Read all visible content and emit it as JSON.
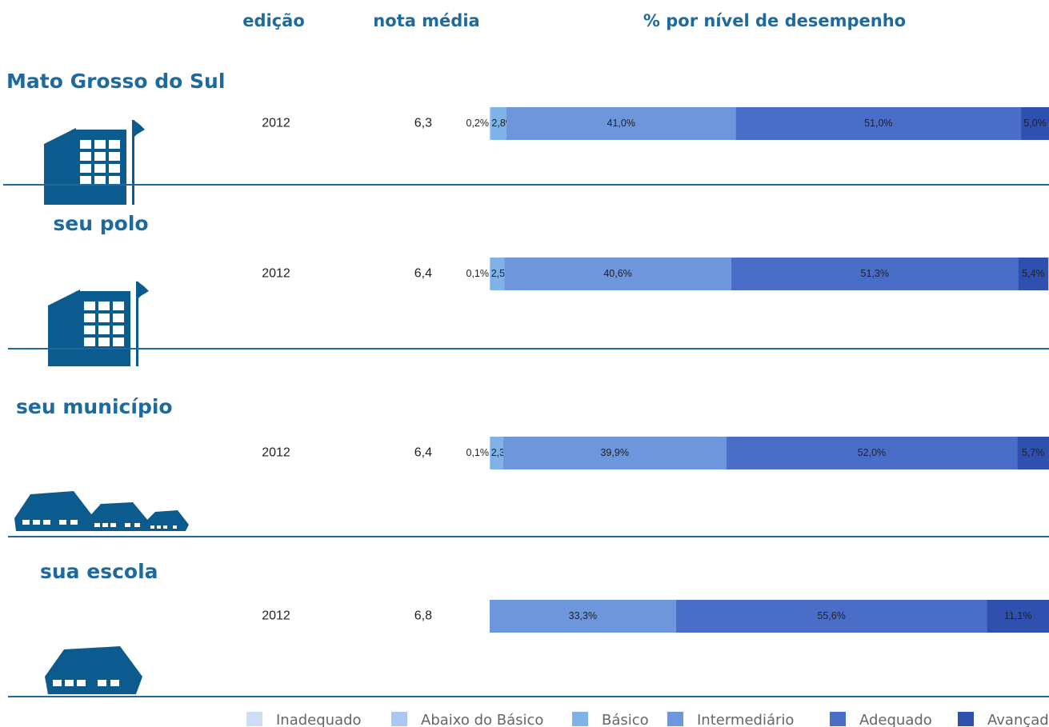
{
  "chart_data": {
    "type": "bar",
    "orientation": "horizontal",
    "stacked": true,
    "column_headers": [
      "edição",
      "nota média",
      "% por nível de desempenho"
    ],
    "categories": [
      "Mato Grosso do  Sul",
      "seu polo",
      "seu município",
      "sua escola"
    ],
    "editions": [
      2012,
      2012,
      2012,
      2012
    ],
    "mean_scores": [
      {
        "value": 6.3,
        "label": "6,3"
      },
      {
        "value": 6.4,
        "label": "6,4"
      },
      {
        "value": 6.4,
        "label": "6,4"
      },
      {
        "value": 6.8,
        "label": "6,8"
      }
    ],
    "xlim": [
      0,
      100
    ],
    "legend": "bottom-right",
    "series": [
      {
        "name": "Inadequado",
        "color": "#cfdcf6",
        "values": [
          null,
          null,
          null,
          null
        ],
        "value_labels": [
          null,
          null,
          null,
          null
        ]
      },
      {
        "name": "Abaixo do Básico",
        "color": "#a9c7f0",
        "values": [
          0.2,
          0.1,
          0.1,
          null
        ],
        "value_labels": [
          "0,2%",
          "0,1%",
          "0,1%",
          null
        ]
      },
      {
        "name": "Básico",
        "color": "#7fb2e6",
        "values": [
          2.8,
          2.5,
          2.3,
          null
        ],
        "value_labels": [
          "2,8%",
          "2,5%",
          "2,3%",
          null
        ]
      },
      {
        "name": "Intermediário",
        "color": "#6d96dd",
        "values": [
          41.0,
          40.6,
          39.9,
          33.3
        ],
        "value_labels": [
          "41,0%",
          "40,6%",
          "39,9%",
          "33,3%"
        ]
      },
      {
        "name": "Adequado",
        "color": "#4a6ec8",
        "values": [
          51.0,
          51.3,
          52.0,
          55.6
        ],
        "value_labels": [
          "51,0%",
          "51,3%",
          "52,0%",
          "55,6%"
        ]
      },
      {
        "name": "Avançado",
        "color": "#3050b0",
        "values": [
          5.0,
          5.4,
          5.7,
          11.1
        ],
        "value_labels": [
          "5,0%",
          "5,4%",
          "5,7%",
          "11,1%"
        ]
      }
    ]
  }
}
